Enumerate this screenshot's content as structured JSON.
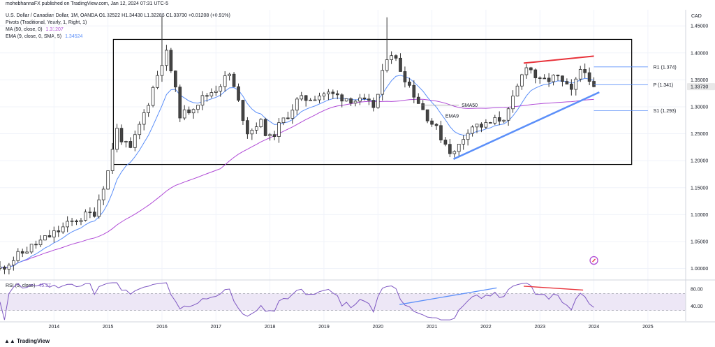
{
  "header": {
    "published": "mohebhannaFX published on TradingView.com, Jan 12, 2024 07:31 UTC-5",
    "symbol_line": "U.S. Dollar / Canadian Dollar, 1M, OANDA  O1.32522  H1.34430  L1.32286  C1.33730  +0.01208 (+0.91%)",
    "pivots_line": "Pivots (Traditional, Yearly, 1, Right, 1)",
    "ma_label": "MA (50, close, 0)",
    "ma_value": "1.31207",
    "ema_label": "EMA (9, close, 0, SMA, 5)",
    "ema_value": "1.34524",
    "rsi_label": "RSI (5, close)",
    "rsi_value": "45.37",
    "currency": "CAD"
  },
  "footer": {
    "brand": "TradingView"
  },
  "colors": {
    "bull": "#ffffff",
    "bear": "#444444",
    "wick": "#333333",
    "ema": "#5b8ff9",
    "sma": "#b04ad6",
    "pivot": "#5b8ff9",
    "resistance": "#e8323a",
    "support": "#5b8ff9",
    "rsi": "#7e57c2",
    "rsi_band": "#ede7f6",
    "price_tag": "#e8e8e8"
  },
  "chart_data": [
    {
      "type": "candlestick",
      "interval": "1M",
      "x_ticks": [
        "2014",
        "2015",
        "2016",
        "2017",
        "2018",
        "2019",
        "2020",
        "2021",
        "2022",
        "2023",
        "2024",
        "2025"
      ],
      "y_ticks": [
        "1.45000",
        "1.40000",
        "1.35000",
        "1.30000",
        "1.25000",
        "1.20000",
        "1.15000",
        "1.10000",
        "1.05000",
        "1.00000"
      ],
      "ylim": [
        0.98,
        1.48
      ],
      "last_price": "1.33730",
      "series": [
        {
          "name": "EMA (9, close, 0, SMA, 5)",
          "kind": "ema"
        },
        {
          "name": "MA (50, close, 0)",
          "kind": "sma"
        }
      ],
      "candles_summary": "monthly OHLC from 2013 to Jan 2024",
      "pivots": [
        {
          "label": "R1 (1.374)",
          "value": 1.374
        },
        {
          "label": "P (1.341)",
          "value": 1.341
        },
        {
          "label": "S1 (1.293)",
          "value": 1.293
        }
      ],
      "annotations": {
        "sma_label": "SMA50",
        "ema_label": "EMA9",
        "range_box": {
          "x0": 2015.1,
          "x1": 2024.7,
          "y0": 1.193,
          "y1": 1.425
        },
        "resistance_line": {
          "x0": 2022.7,
          "y0": 1.381,
          "x1": 2024.0,
          "y1": 1.394
        },
        "support_line": {
          "x0": 2021.4,
          "y0": 1.203,
          "x1": 2024.1,
          "y1": 1.327
        }
      }
    },
    {
      "type": "line",
      "name": "RSI (5, close)",
      "y_ticks": [
        "80.00",
        "40.00"
      ],
      "ylim": [
        5,
        100
      ],
      "levels": [
        70,
        30
      ],
      "annotations": {
        "rising_line": {
          "x0": 2020.4,
          "y0": 44,
          "x1": 2022.2,
          "y1": 83
        },
        "falling_line": {
          "x0": 2022.7,
          "y0": 87,
          "x1": 2023.8,
          "y1": 78
        }
      }
    }
  ]
}
